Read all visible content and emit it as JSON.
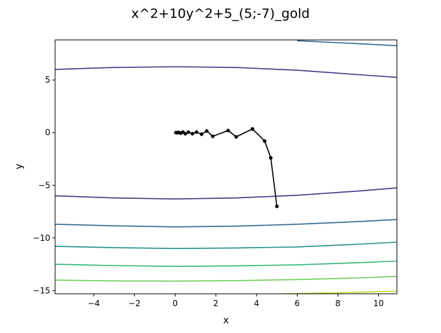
{
  "chart_data": {
    "type": "line",
    "title": "x^2+10y^2+5_(5;-7)_gold",
    "xlabel": "x",
    "ylabel": "y",
    "xlim": [
      -5.9,
      10.9
    ],
    "ylim": [
      -15.3,
      8.8
    ],
    "xticks": [
      -4,
      -2,
      0,
      2,
      4,
      6,
      8,
      10
    ],
    "yticks": [
      5,
      0,
      -5,
      -10,
      -15
    ],
    "xtick_labels": [
      "−4",
      "−2",
      "0",
      "2",
      "4",
      "6",
      "8",
      "10"
    ],
    "ytick_labels": [
      "5",
      "0",
      "−5",
      "−10",
      "−15"
    ],
    "grid": false,
    "contour_series": [
      {
        "name": "contour-1",
        "color": "#443983",
        "x": [
          -5.9,
          -3,
          0,
          3,
          6,
          9,
          10.9
        ],
        "y": [
          6.0,
          6.18,
          6.25,
          6.18,
          5.92,
          5.5,
          5.25
        ]
      },
      {
        "name": "contour-2",
        "color": "#31688e",
        "x": [
          6,
          9,
          10.9
        ],
        "y": [
          8.72,
          8.45,
          8.25
        ]
      },
      {
        "name": "contour-3",
        "color": "#443983",
        "x": [
          -5.9,
          -3,
          0,
          3,
          6,
          9,
          10.9
        ],
        "y": [
          -6.0,
          -6.2,
          -6.3,
          -6.2,
          -5.95,
          -5.55,
          -5.25
        ]
      },
      {
        "name": "contour-4",
        "color": "#31688e",
        "x": [
          -5.9,
          -3,
          0,
          3,
          6,
          9,
          10.9
        ],
        "y": [
          -8.7,
          -8.85,
          -8.95,
          -8.88,
          -8.7,
          -8.45,
          -8.25
        ]
      },
      {
        "name": "contour-5",
        "color": "#21918c",
        "x": [
          -5.9,
          -3,
          0,
          3,
          6,
          9,
          10.9
        ],
        "y": [
          -10.8,
          -10.92,
          -11.0,
          -10.95,
          -10.85,
          -10.6,
          -10.4
        ]
      },
      {
        "name": "contour-6",
        "color": "#35b779",
        "x": [
          -5.9,
          -3,
          0,
          3,
          6,
          9,
          10.9
        ],
        "y": [
          -12.5,
          -12.62,
          -12.7,
          -12.65,
          -12.55,
          -12.35,
          -12.2
        ]
      },
      {
        "name": "contour-7",
        "color": "#6ccd5a",
        "x": [
          -5.9,
          -3,
          0,
          3,
          6,
          9,
          10.9
        ],
        "y": [
          -14.0,
          -14.08,
          -14.1,
          -14.05,
          -13.95,
          -13.8,
          -13.65
        ]
      },
      {
        "name": "contour-8",
        "color": "#b5de2b",
        "x": [
          5.3,
          8,
          10.9
        ],
        "y": [
          -15.3,
          -15.2,
          -15.05
        ]
      }
    ],
    "series": [
      {
        "name": "gold-path",
        "color": "#000000",
        "x": [
          5.0,
          4.7,
          4.4,
          3.8,
          3.0,
          2.6,
          1.85,
          1.55,
          1.3,
          1.05,
          0.85,
          0.65,
          0.5,
          0.38,
          0.26,
          0.16,
          0.08,
          0.03
        ],
        "y": [
          -7.0,
          -2.4,
          -0.8,
          0.35,
          -0.4,
          0.2,
          -0.35,
          0.15,
          -0.15,
          0.05,
          -0.1,
          0.05,
          -0.1,
          0.05,
          -0.05,
          0.02,
          -0.02,
          0.0
        ]
      }
    ]
  }
}
